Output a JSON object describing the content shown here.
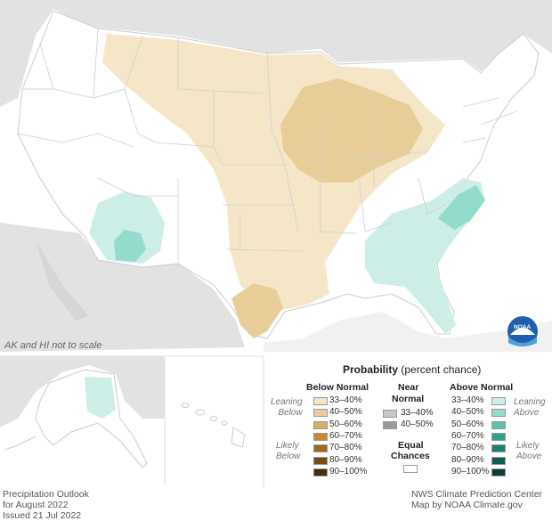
{
  "map_note": "AK and HI not to scale",
  "logo_text": "NOAA",
  "colors": {
    "background_land": "#e2e2e2",
    "water": "#ffffff",
    "state_lines": "#ffffff",
    "equal_chances": "#ffffff",
    "below": [
      "#f5e6c8",
      "#e9cd98",
      "#d9ac60",
      "#c68a30",
      "#a06820",
      "#7a4a10",
      "#4a2a08"
    ],
    "near": [
      "#c8c8c8",
      "#9a9a9a"
    ],
    "above": [
      "#cdeee6",
      "#93dbcc",
      "#5cc2ae",
      "#2ea38c",
      "#1a8070",
      "#0f5e52",
      "#073f37"
    ]
  },
  "legend": {
    "title": "Probability",
    "subtitle": "(percent chance)",
    "below_header": "Below Normal",
    "near_header_line1": "Near",
    "near_header_line2": "Normal",
    "above_header": "Above Normal",
    "leaning_below": [
      "Leaning",
      "Below"
    ],
    "likely_below": [
      "Likely",
      "Below"
    ],
    "leaning_above": [
      "Leaning",
      "Above"
    ],
    "likely_above": [
      "Likely",
      "Above"
    ],
    "below_ranges": [
      "33–40%",
      "40–50%",
      "50–60%",
      "60–70%",
      "70–80%",
      "80–90%",
      "90–100%"
    ],
    "near_ranges": [
      "33–40%",
      "40–50%"
    ],
    "above_ranges": [
      "33–40%",
      "40–50%",
      "50–60%",
      "60–70%",
      "70–80%",
      "80–90%",
      "90–100%"
    ],
    "equal_line1": "Equal",
    "equal_line2": "Chances"
  },
  "footer_left": [
    "Precipitation Outlook",
    "for August 2022",
    "Issued 21 Jul 2022"
  ],
  "footer_right": [
    "NWS Climate Prediction Center",
    "Map by NOAA Climate.gov"
  ]
}
